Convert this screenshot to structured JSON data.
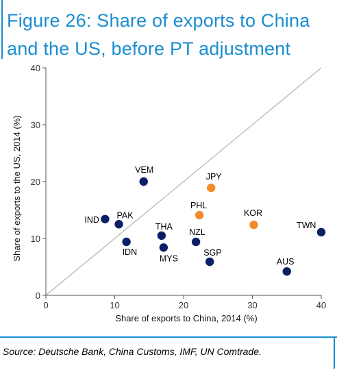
{
  "title_line1": "Figure 26: Share of exports to China",
  "title_line2": "and the US, before PT adjustment",
  "source": "Source: Deutsche Bank, China Customs, IMF, UN Comtrade.",
  "colors": {
    "accent": "#1a8dd1",
    "navy": "#0a1f66",
    "orange": "#f28c28",
    "diagonal": "#b3b3b3"
  },
  "chart_data": {
    "type": "scatter",
    "title": "",
    "xlabel": "Share of exports to China, 2014 (%)",
    "ylabel": "Share of exports to the US, 2014 (%)",
    "xlim": [
      0,
      40
    ],
    "ylim": [
      0,
      40
    ],
    "xticks": [
      0,
      10,
      20,
      30,
      40
    ],
    "yticks": [
      0,
      10,
      20,
      30,
      40
    ],
    "grid": false,
    "reference_line": "y = x",
    "points": [
      {
        "label": "VEM",
        "x": 14.2,
        "y": 20.0,
        "group": "navy"
      },
      {
        "label": "JPY",
        "x": 24.0,
        "y": 18.9,
        "group": "orange"
      },
      {
        "label": "PHL",
        "x": 22.3,
        "y": 14.1,
        "group": "orange"
      },
      {
        "label": "KOR",
        "x": 30.2,
        "y": 12.4,
        "group": "orange"
      },
      {
        "label": "IND",
        "x": 8.6,
        "y": 13.4,
        "group": "navy"
      },
      {
        "label": "PAK",
        "x": 10.6,
        "y": 12.5,
        "group": "navy"
      },
      {
        "label": "THA",
        "x": 16.8,
        "y": 10.5,
        "group": "navy"
      },
      {
        "label": "NZL",
        "x": 21.8,
        "y": 9.4,
        "group": "navy"
      },
      {
        "label": "TWN",
        "x": 40.0,
        "y": 11.1,
        "group": "navy"
      },
      {
        "label": "IDN",
        "x": 11.7,
        "y": 9.4,
        "group": "navy"
      },
      {
        "label": "MYS",
        "x": 17.1,
        "y": 8.4,
        "group": "navy"
      },
      {
        "label": "SGP",
        "x": 23.8,
        "y": 5.9,
        "group": "navy"
      },
      {
        "label": "AUS",
        "x": 35.0,
        "y": 4.2,
        "group": "navy"
      }
    ]
  }
}
